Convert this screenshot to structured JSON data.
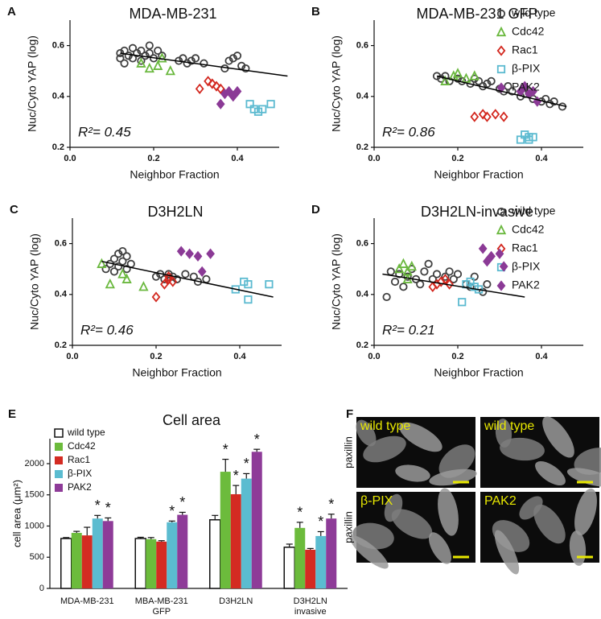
{
  "chart_data": [
    {
      "type": "scatter",
      "panel": "A",
      "title": "MDA-MB-231",
      "x_label": "Neighbor Fraction",
      "y_label": "Nuc/Cyto YAP (log)",
      "xlim": [
        0,
        0.5
      ],
      "ylim": [
        0.2,
        0.7
      ],
      "xticks": [
        {
          "value": 0,
          "label": "0.0"
        },
        0.2,
        0.4
      ],
      "yticks": [
        0.2,
        0.4,
        0.6
      ],
      "legend": false,
      "annotation": "R²= 0.45",
      "fit": {
        "x": [
          0.12,
          0.52
        ],
        "y": [
          0.57,
          0.48
        ]
      },
      "series": [
        {
          "color": "#404040",
          "marker": "circle",
          "x": [
            0.12,
            0.12,
            0.13,
            0.13,
            0.14,
            0.15,
            0.15,
            0.16,
            0.17,
            0.17,
            0.18,
            0.19,
            0.19,
            0.2,
            0.21,
            0.22,
            0.26,
            0.27,
            0.28,
            0.29,
            0.3,
            0.32,
            0.37,
            0.38,
            0.39,
            0.4,
            0.41,
            0.42
          ],
          "values": [
            0.55,
            0.57,
            0.53,
            0.58,
            0.56,
            0.59,
            0.55,
            0.57,
            0.58,
            0.54,
            0.56,
            0.6,
            0.57,
            0.55,
            0.58,
            0.56,
            0.54,
            0.55,
            0.53,
            0.54,
            0.55,
            0.53,
            0.51,
            0.54,
            0.55,
            0.56,
            0.52,
            0.51
          ]
        },
        {
          "color": "#6ab83e",
          "marker": "triangle",
          "x": [
            0.17,
            0.19,
            0.21,
            0.22,
            0.24
          ],
          "values": [
            0.53,
            0.51,
            0.52,
            0.55,
            0.5
          ]
        },
        {
          "color": "#d3281f",
          "marker": "diamond",
          "x": [
            0.31,
            0.33,
            0.34,
            0.35,
            0.36
          ],
          "values": [
            0.43,
            0.46,
            0.45,
            0.44,
            0.43
          ]
        },
        {
          "color": "#5bbad0",
          "marker": "square",
          "x": [
            0.43,
            0.44,
            0.45,
            0.46,
            0.48
          ],
          "values": [
            0.37,
            0.35,
            0.34,
            0.35,
            0.37
          ]
        },
        {
          "color": "#8b3a96",
          "marker": "diamond-filled",
          "x": [
            0.36,
            0.37,
            0.38,
            0.39,
            0.4
          ],
          "values": [
            0.37,
            0.41,
            0.42,
            0.4,
            0.42
          ]
        }
      ]
    },
    {
      "type": "scatter",
      "panel": "B",
      "title": "MDA-MB-231 GFP",
      "x_label": "Neighbor Fraction",
      "y_label": "Nuc/Cyto YAP (log)",
      "xlim": [
        0,
        0.5
      ],
      "ylim": [
        0.2,
        0.7
      ],
      "xticks": [
        {
          "value": 0,
          "label": "0.0"
        },
        0.2,
        0.4
      ],
      "yticks": [
        0.2,
        0.4,
        0.6
      ],
      "legend": true,
      "annotation": "R²= 0.86",
      "fit": {
        "x": [
          0.15,
          0.46
        ],
        "y": [
          0.48,
          0.36
        ]
      },
      "series": [
        {
          "name": "wild type",
          "color": "#404040",
          "marker": "circle",
          "x": [
            0.15,
            0.16,
            0.17,
            0.18,
            0.2,
            0.21,
            0.23,
            0.24,
            0.25,
            0.26,
            0.27,
            0.28,
            0.3,
            0.31,
            0.32,
            0.33,
            0.35,
            0.36,
            0.37,
            0.38,
            0.4,
            0.41,
            0.42,
            0.43,
            0.45
          ],
          "values": [
            0.48,
            0.47,
            0.48,
            0.46,
            0.47,
            0.46,
            0.45,
            0.47,
            0.46,
            0.44,
            0.45,
            0.46,
            0.43,
            0.42,
            0.44,
            0.42,
            0.4,
            0.41,
            0.42,
            0.39,
            0.38,
            0.39,
            0.37,
            0.38,
            0.36
          ]
        },
        {
          "name": "Cdc42",
          "color": "#6ab83e",
          "marker": "triangle",
          "x": [
            0.17,
            0.19,
            0.2,
            0.22,
            0.24
          ],
          "values": [
            0.46,
            0.48,
            0.49,
            0.47,
            0.48
          ]
        },
        {
          "name": "Rac1",
          "color": "#d3281f",
          "marker": "diamond",
          "x": [
            0.24,
            0.26,
            0.27,
            0.29,
            0.31
          ],
          "values": [
            0.32,
            0.33,
            0.32,
            0.33,
            0.32
          ]
        },
        {
          "name": "β-PIX",
          "color": "#5bbad0",
          "marker": "square",
          "x": [
            0.35,
            0.36,
            0.37,
            0.37,
            0.38
          ],
          "values": [
            0.23,
            0.25,
            0.23,
            0.24,
            0.24
          ]
        },
        {
          "name": "PAK2",
          "color": "#8b3a96",
          "marker": "diamond-filled",
          "x": [
            0.35,
            0.36,
            0.37,
            0.38,
            0.39
          ],
          "values": [
            0.42,
            0.44,
            0.41,
            0.42,
            0.38
          ]
        }
      ]
    },
    {
      "type": "scatter",
      "panel": "C",
      "title": "D3H2LN",
      "x_label": "Neighbor Fraction",
      "y_label": "Nuc/Cyto YAP (log)",
      "xlim": [
        0,
        0.5
      ],
      "ylim": [
        0.2,
        0.7
      ],
      "xticks": [
        {
          "value": 0,
          "label": "0.0"
        },
        0.2,
        0.4
      ],
      "yticks": [
        0.2,
        0.4,
        0.6
      ],
      "legend": false,
      "annotation": "R²= 0.46",
      "fit": {
        "x": [
          0.07,
          0.48
        ],
        "y": [
          0.53,
          0.39
        ]
      },
      "series": [
        {
          "color": "#404040",
          "marker": "circle",
          "x": [
            0.08,
            0.09,
            0.1,
            0.1,
            0.11,
            0.11,
            0.12,
            0.12,
            0.13,
            0.13,
            0.14,
            0.2,
            0.21,
            0.22,
            0.23,
            0.24,
            0.25,
            0.27,
            0.29,
            0.3,
            0.32
          ],
          "values": [
            0.5,
            0.52,
            0.54,
            0.49,
            0.56,
            0.51,
            0.53,
            0.57,
            0.55,
            0.5,
            0.52,
            0.47,
            0.48,
            0.46,
            0.48,
            0.47,
            0.46,
            0.48,
            0.47,
            0.45,
            0.46
          ]
        },
        {
          "color": "#6ab83e",
          "marker": "triangle",
          "x": [
            0.07,
            0.09,
            0.12,
            0.13,
            0.17
          ],
          "values": [
            0.52,
            0.44,
            0.48,
            0.46,
            0.43
          ]
        },
        {
          "color": "#d3281f",
          "marker": "diamond",
          "x": [
            0.2,
            0.22,
            0.23,
            0.23,
            0.24
          ],
          "values": [
            0.39,
            0.44,
            0.46,
            0.47,
            0.45
          ]
        },
        {
          "color": "#5bbad0",
          "marker": "square",
          "x": [
            0.39,
            0.41,
            0.42,
            0.42,
            0.47
          ],
          "values": [
            0.42,
            0.45,
            0.38,
            0.44,
            0.44
          ]
        },
        {
          "color": "#8b3a96",
          "marker": "diamond-filled",
          "x": [
            0.26,
            0.28,
            0.3,
            0.31,
            0.33
          ],
          "values": [
            0.57,
            0.56,
            0.55,
            0.49,
            0.56
          ]
        }
      ]
    },
    {
      "type": "scatter",
      "panel": "D",
      "title": "D3H2LN-invasive",
      "x_label": "Neighbor Fraction",
      "y_label": "Nuc/Cyto YAP (log)",
      "xlim": [
        0,
        0.5
      ],
      "ylim": [
        0.2,
        0.7
      ],
      "xticks": [
        {
          "value": 0,
          "label": "0.0"
        },
        0.2,
        0.4
      ],
      "yticks": [
        0.2,
        0.4,
        0.6
      ],
      "legend": true,
      "annotation": "R²= 0.21",
      "fit": {
        "x": [
          0.02,
          0.36
        ],
        "y": [
          0.48,
          0.39
        ]
      },
      "series": [
        {
          "name": "wild type",
          "color": "#404040",
          "marker": "circle",
          "x": [
            0.03,
            0.04,
            0.05,
            0.06,
            0.07,
            0.08,
            0.09,
            0.1,
            0.11,
            0.12,
            0.13,
            0.14,
            0.15,
            0.17,
            0.18,
            0.19,
            0.2,
            0.22,
            0.23,
            0.24,
            0.26,
            0.27
          ],
          "values": [
            0.39,
            0.49,
            0.45,
            0.48,
            0.43,
            0.47,
            0.5,
            0.46,
            0.44,
            0.49,
            0.52,
            0.46,
            0.48,
            0.47,
            0.49,
            0.46,
            0.48,
            0.44,
            0.43,
            0.47,
            0.41,
            0.44
          ]
        },
        {
          "name": "Cdc42",
          "color": "#6ab83e",
          "marker": "triangle",
          "x": [
            0.06,
            0.07,
            0.08,
            0.08,
            0.09
          ],
          "values": [
            0.5,
            0.52,
            0.49,
            0.46,
            0.51
          ]
        },
        {
          "name": "Rac1",
          "color": "#d3281f",
          "marker": "diamond",
          "x": [
            0.14,
            0.15,
            0.16,
            0.17,
            0.18
          ],
          "values": [
            0.43,
            0.44,
            0.45,
            0.46,
            0.44
          ]
        },
        {
          "name": "β-PIX",
          "color": "#5bbad0",
          "marker": "square",
          "x": [
            0.21,
            0.22,
            0.23,
            0.24,
            0.25
          ],
          "values": [
            0.37,
            0.44,
            0.45,
            0.43,
            0.42
          ]
        },
        {
          "name": "PAK2",
          "color": "#8b3a96",
          "marker": "diamond-filled",
          "x": [
            0.26,
            0.27,
            0.28,
            0.3,
            0.31
          ],
          "values": [
            0.58,
            0.53,
            0.55,
            0.56,
            0.51
          ]
        }
      ]
    },
    {
      "type": "bar",
      "panel": "E",
      "title": "Cell area",
      "y_label": "cell area (μm²)",
      "categories": [
        "MDA-MB-231",
        "MBA-MB-231",
        "D3H2LN",
        "D3H2LN"
      ],
      "category_line2": [
        null,
        "GFP",
        null,
        "invasive"
      ],
      "ylim": [
        0,
        2400
      ],
      "yticks": [
        0,
        500,
        1000,
        1500,
        2000
      ],
      "series": [
        {
          "name": "wild type",
          "color": "#ffffff",
          "values": [
            800,
            800,
            1100,
            660
          ],
          "errors": [
            15,
            20,
            70,
            50
          ],
          "annotations": [
            null,
            null,
            null,
            null
          ]
        },
        {
          "name": "Cdc42",
          "color": "#6cbb3c",
          "values": [
            890,
            790,
            1870,
            970
          ],
          "errors": [
            25,
            25,
            200,
            90
          ],
          "annotations": [
            null,
            null,
            "*",
            "*"
          ]
        },
        {
          "name": "Rac1",
          "color": "#d42b22",
          "values": [
            850,
            750,
            1510,
            620
          ],
          "errors": [
            130,
            15,
            140,
            20
          ],
          "annotations": [
            null,
            null,
            "*",
            null
          ]
        },
        {
          "name": "β-PIX",
          "color": "#5bbcd0",
          "values": [
            1120,
            1060,
            1760,
            840
          ],
          "errors": [
            50,
            20,
            80,
            70
          ],
          "annotations": [
            "*",
            "*",
            "*",
            "*"
          ]
        },
        {
          "name": "PAK2",
          "color": "#8e3b98",
          "values": [
            1080,
            1180,
            2190,
            1120
          ],
          "errors": [
            50,
            40,
            40,
            70
          ],
          "annotations": [
            "*",
            "*",
            "*",
            "*"
          ]
        }
      ]
    }
  ],
  "figure_f": {
    "panel": "F",
    "row_labels": [
      "paxillin",
      "paxillin"
    ],
    "images": [
      "wild type",
      "wild type",
      "β-PIX",
      "PAK2"
    ]
  }
}
